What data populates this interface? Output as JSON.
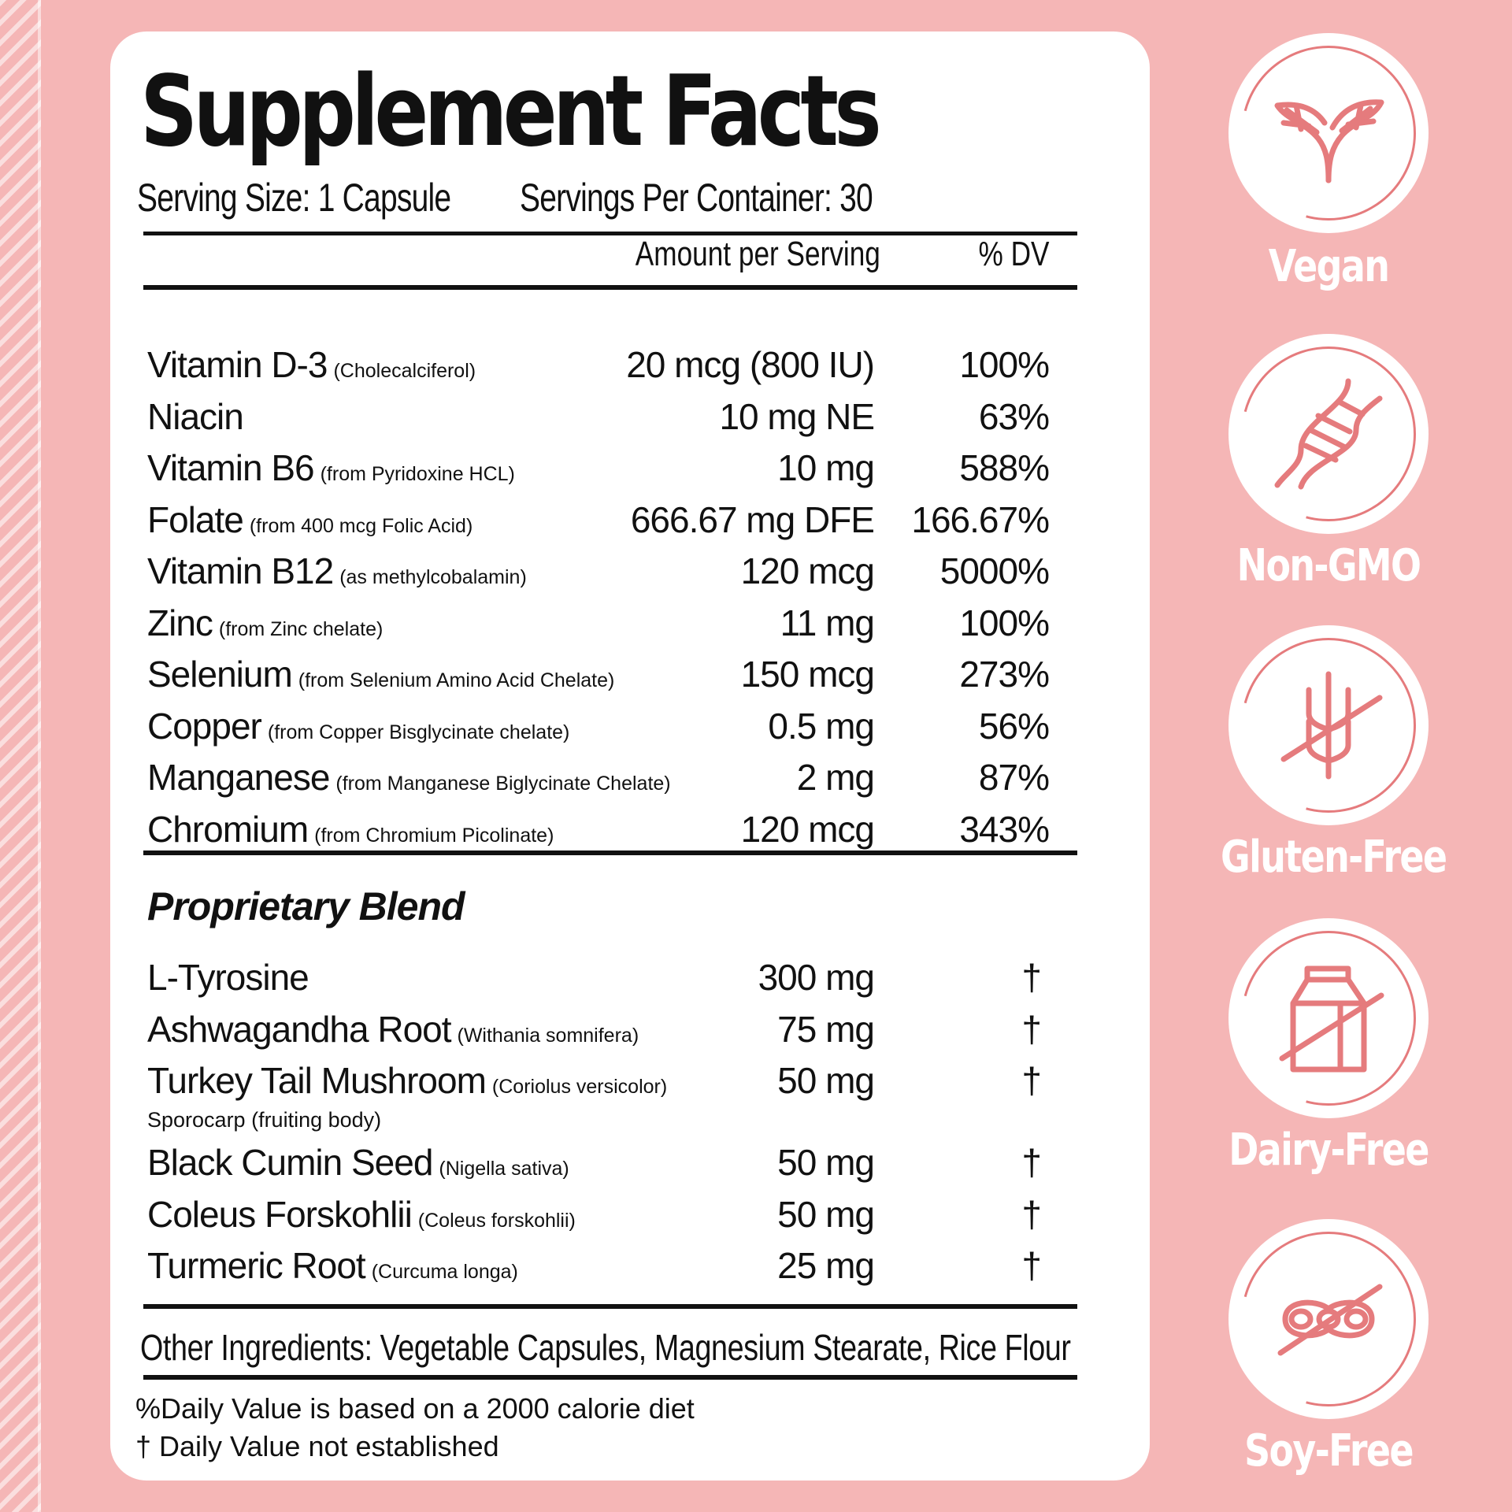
{
  "title": "Supplement Facts",
  "serving_size": "Serving Size: 1 Capsule",
  "servings_per_container": "Servings Per Container: 30",
  "columns": {
    "amount": "Amount per Serving",
    "dv": "% DV"
  },
  "nutrients": [
    {
      "name": "Vitamin D-3",
      "note": "(Cholecalciferol)",
      "amount": "20 mcg (800 IU)",
      "dv": "100%"
    },
    {
      "name": "Niacin",
      "note": "",
      "amount": "10 mg NE",
      "dv": "63%"
    },
    {
      "name": "Vitamin B6",
      "note": "(from Pyridoxine HCL)",
      "amount": "10 mg",
      "dv": "588%"
    },
    {
      "name": "Folate",
      "note": "(from 400 mcg Folic Acid)",
      "amount": "666.67 mg DFE",
      "dv": "166.67%"
    },
    {
      "name": "Vitamin B12",
      "note": "(as methylcobalamin)",
      "amount": "120 mcg",
      "dv": "5000%"
    },
    {
      "name": "Zinc",
      "note": "(from Zinc chelate)",
      "amount": "11 mg",
      "dv": "100%"
    },
    {
      "name": "Selenium",
      "note": "(from Selenium Amino Acid Chelate)",
      "amount": "150 mcg",
      "dv": "273%"
    },
    {
      "name": "Copper",
      "note": "(from Copper Bisglycinate chelate)",
      "amount": "0.5 mg",
      "dv": "56%"
    },
    {
      "name": "Manganese",
      "note": "(from Manganese Biglycinate Chelate)",
      "amount": "2 mg",
      "dv": "87%"
    },
    {
      "name": "Chromium",
      "note": "(from Chromium Picolinate)",
      "amount": "120 mcg",
      "dv": "343%"
    }
  ],
  "blend": {
    "title": "Proprietary Blend",
    "items": [
      {
        "name": "L-Tyrosine",
        "note": "",
        "sub": "",
        "amount": "300 mg",
        "dv": "†"
      },
      {
        "name": "Ashwagandha Root",
        "note": "(Withania somnifera)",
        "sub": "",
        "amount": "75 mg",
        "dv": "†"
      },
      {
        "name": "Turkey Tail Mushroom",
        "note": "(Coriolus versicolor)",
        "sub": "Sporocarp (fruiting body)",
        "amount": "50 mg",
        "dv": "†"
      },
      {
        "name": "Black Cumin Seed",
        "note": "(Nigella sativa)",
        "sub": "",
        "amount": "50 mg",
        "dv": "†"
      },
      {
        "name": "Coleus Forskohlii",
        "note": "(Coleus forskohlii)",
        "sub": "",
        "amount": "50 mg",
        "dv": "†"
      },
      {
        "name": "Turmeric Root",
        "note": "(Curcuma longa)",
        "sub": "",
        "amount": "25 mg",
        "dv": "†"
      }
    ]
  },
  "other_ingredients": "Other Ingredients:  Vegetable Capsules, Magnesium Stearate, Rice Flour",
  "footnotes": [
    "%Daily Value is based on a 2000 calorie diet",
    "† Daily Value not established"
  ],
  "badges": [
    {
      "label": "Vegan",
      "icon": "leaf-icon"
    },
    {
      "label": "Non-GMO",
      "icon": "dna-icon"
    },
    {
      "label": "Gluten-Free",
      "icon": "wheat-crossed-icon"
    },
    {
      "label": "Dairy-Free",
      "icon": "milk-carton-crossed-icon"
    },
    {
      "label": "Soy-Free",
      "icon": "soybean-crossed-icon"
    }
  ],
  "colors": {
    "background": "#f5b6b6",
    "accent": "#e57b7d",
    "card": "#ffffff",
    "text": "#111111"
  }
}
